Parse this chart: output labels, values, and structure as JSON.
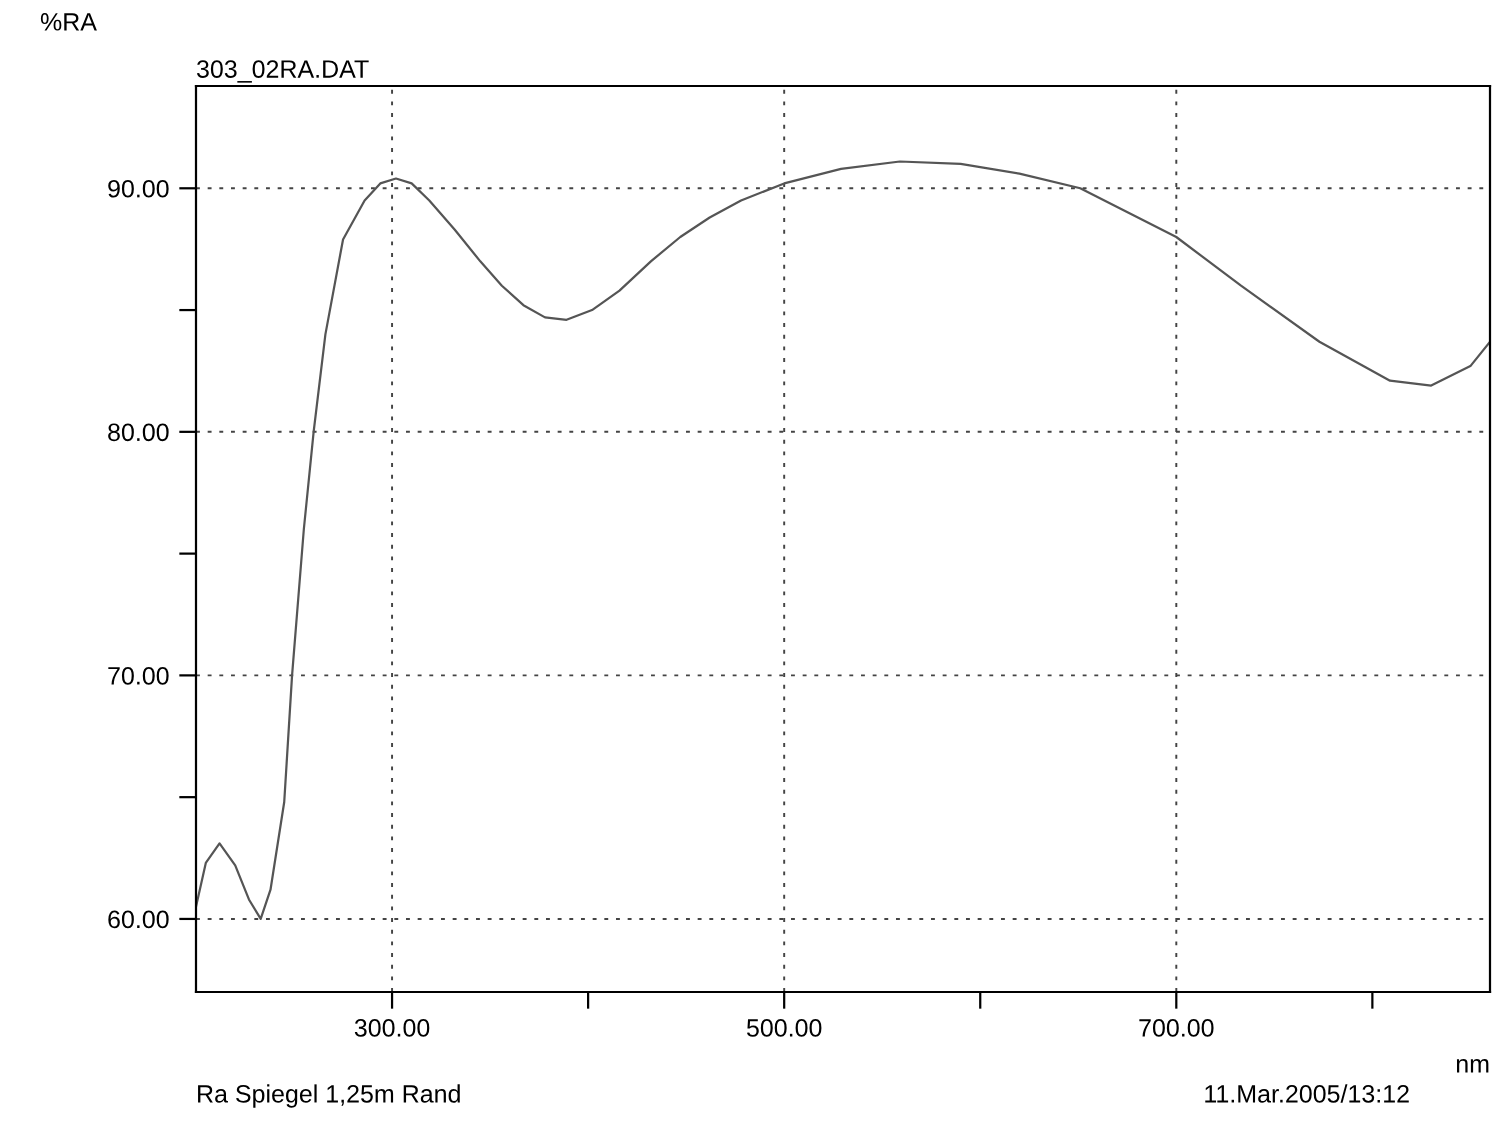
{
  "chart_data": {
    "type": "line",
    "title": "303_02RA.DAT",
    "xlabel": "nm",
    "ylabel": "%RA",
    "annotations": [
      "Ra Spiegel 1,25m Rand",
      "11.Mar.2005/13:12"
    ],
    "xlim": [
      200,
      860
    ],
    "ylim": [
      57,
      94.2
    ],
    "xticks": [
      {
        "value": 300,
        "label": "300.00"
      },
      {
        "value": 400,
        "label": null
      },
      {
        "value": 500,
        "label": "500.00"
      },
      {
        "value": 600,
        "label": null
      },
      {
        "value": 700,
        "label": "700.00"
      },
      {
        "value": 800,
        "label": null
      }
    ],
    "yticks": [
      {
        "value": 60,
        "label": "60.00"
      },
      {
        "value": 65,
        "label": null
      },
      {
        "value": 70,
        "label": "70.00"
      },
      {
        "value": 75,
        "label": null
      },
      {
        "value": 80,
        "label": "80.00"
      },
      {
        "value": 85,
        "label": null
      },
      {
        "value": 90,
        "label": "90.00"
      }
    ],
    "grid": true,
    "line_style": "solid",
    "marker": "none",
    "series": [
      {
        "color": "#555555",
        "x": [
          200,
          205,
          212,
          220,
          227,
          233,
          238,
          245,
          249,
          255,
          260,
          266,
          275,
          286,
          294,
          302,
          310,
          319,
          332,
          345,
          356,
          367,
          378,
          389,
          402,
          416,
          432,
          447,
          462,
          478,
          500,
          529,
          559,
          590,
          620,
          651,
          700,
          733,
          773,
          809,
          830,
          850,
          860
        ],
        "values": [
          60.5,
          62.3,
          63.1,
          62.2,
          60.8,
          60.0,
          61.2,
          64.8,
          70.0,
          76.0,
          80.0,
          84.0,
          87.9,
          89.5,
          90.2,
          90.4,
          90.2,
          89.5,
          88.3,
          87.0,
          86.0,
          85.2,
          84.7,
          84.6,
          85.0,
          85.8,
          87.0,
          88.0,
          88.8,
          89.5,
          90.2,
          90.8,
          91.1,
          91.0,
          90.6,
          90.0,
          88.0,
          86.0,
          83.7,
          82.1,
          81.9,
          82.7,
          83.7
        ]
      }
    ]
  }
}
